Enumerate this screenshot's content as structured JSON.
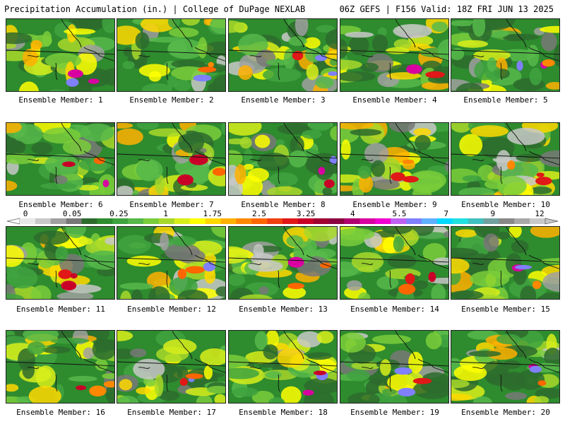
{
  "header": {
    "left": "Precipitation Accumulation (in.) | College of DuPage NEXLAB",
    "right": "06Z GEFS | F156 Valid: 18Z FRI JUN 13 2025"
  },
  "caption_prefix": "Ensemble Member: ",
  "members": [
    1,
    2,
    3,
    4,
    5,
    6,
    7,
    8,
    9,
    10,
    11,
    12,
    13,
    14,
    15,
    16,
    17,
    18,
    19,
    20
  ],
  "colorbar": {
    "labels": [
      "0",
      "0.05",
      "0.25",
      "1",
      "1.75",
      "2.5",
      "3.25",
      "4",
      "5.5",
      "7",
      "9",
      "12"
    ],
    "colors": [
      "#e8e8e8",
      "#c8c8c8",
      "#a0a0a0",
      "#787878",
      "#2d6b2d",
      "#2e8b2e",
      "#3fa33f",
      "#56b84a",
      "#7acc3a",
      "#a8d82a",
      "#d8ee1a",
      "#ffff00",
      "#ffd800",
      "#ffb000",
      "#ff8800",
      "#ff6600",
      "#f04010",
      "#e01818",
      "#c80028",
      "#a00030",
      "#8a0040",
      "#b00070",
      "#d800a0",
      "#f000d0",
      "#c060f0",
      "#8080ff",
      "#60b0ff",
      "#00d8ff",
      "#20e0e0",
      "#40c0c0",
      "#70a0a0",
      "#888888",
      "#a8a8a8",
      "#c8c8c8"
    ]
  }
}
